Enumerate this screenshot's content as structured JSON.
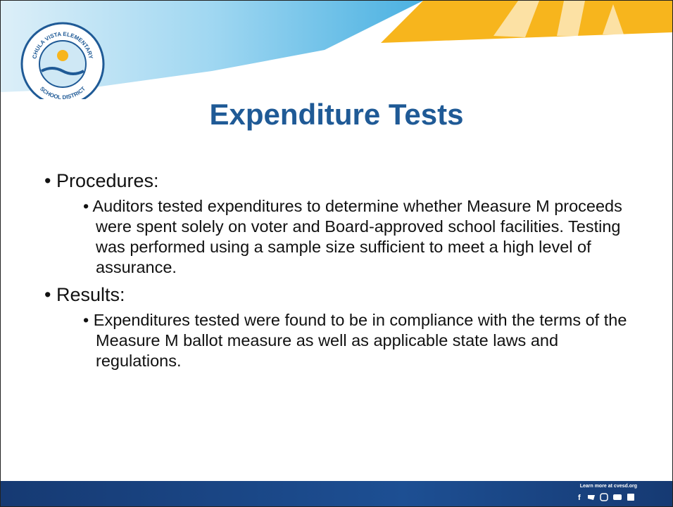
{
  "logo": {
    "top_text": "CHULA VISTA ELEMENTARY",
    "bottom_text": "SCHOOL DISTRICT"
  },
  "title": "Expenditure Tests",
  "bullets": [
    {
      "label": "Procedures:",
      "details": [
        "Auditors tested expenditures to determine whether Measure M proceeds were spent solely on voter and Board-approved school facilities. Testing was performed using a sample size sufficient to meet a high level of assurance."
      ]
    },
    {
      "label": "Results:",
      "details": [
        "Expenditures tested were found to be in compliance with the terms of the Measure M ballot measure as well as applicable state laws and regulations."
      ]
    }
  ],
  "footer": {
    "text": "Learn more at cvesd.org"
  }
}
